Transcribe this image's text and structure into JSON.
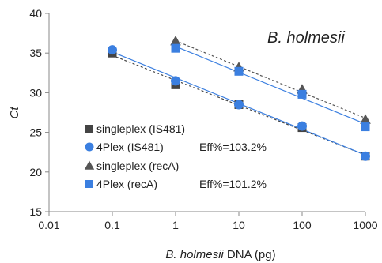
{
  "chart_data": {
    "type": "scatter",
    "annotation": "B. holmesii",
    "ylabel": "Ct",
    "xlabel": {
      "italic_part": "B. holmesii",
      "rest": " DNA (pg)"
    },
    "xscale": "log",
    "xlim": [
      0.01,
      1000
    ],
    "ylim": [
      15,
      40
    ],
    "x_ticks": [
      "0.01",
      "0.1",
      "1",
      "10",
      "100",
      "1000"
    ],
    "y_ticks": [
      "15",
      "20",
      "25",
      "30",
      "35",
      "40"
    ],
    "grid": false,
    "legend_position": "inside, lower-left",
    "series": [
      {
        "name": "singleplex (IS481)",
        "marker": "square",
        "color": "#444444",
        "line_style": "dashed",
        "x": [
          0.1,
          1,
          10,
          100,
          1000
        ],
        "y": [
          35.0,
          31.0,
          28.5,
          25.6,
          22.0
        ]
      },
      {
        "name": "4Plex (IS481)",
        "marker": "circle",
        "color": "#3b7fe0",
        "line_style": "solid",
        "efficiency": "Eff%=103.2%",
        "x": [
          0.1,
          1,
          10,
          100,
          1000
        ],
        "y": [
          35.4,
          31.5,
          28.5,
          25.8,
          22.0
        ]
      },
      {
        "name": "singleplex (recA)",
        "marker": "triangle",
        "color": "#555555",
        "line_style": "dashed",
        "x": [
          1,
          10,
          100,
          1000
        ],
        "y": [
          36.5,
          33.2,
          30.4,
          26.6
        ]
      },
      {
        "name": "4Plex (recA)",
        "marker": "square",
        "color": "#3b7fe0",
        "line_style": "solid",
        "efficiency": "Eff%=101.2%",
        "x": [
          1,
          10,
          100,
          1000
        ],
        "y": [
          35.6,
          32.7,
          29.8,
          25.7
        ]
      }
    ]
  }
}
